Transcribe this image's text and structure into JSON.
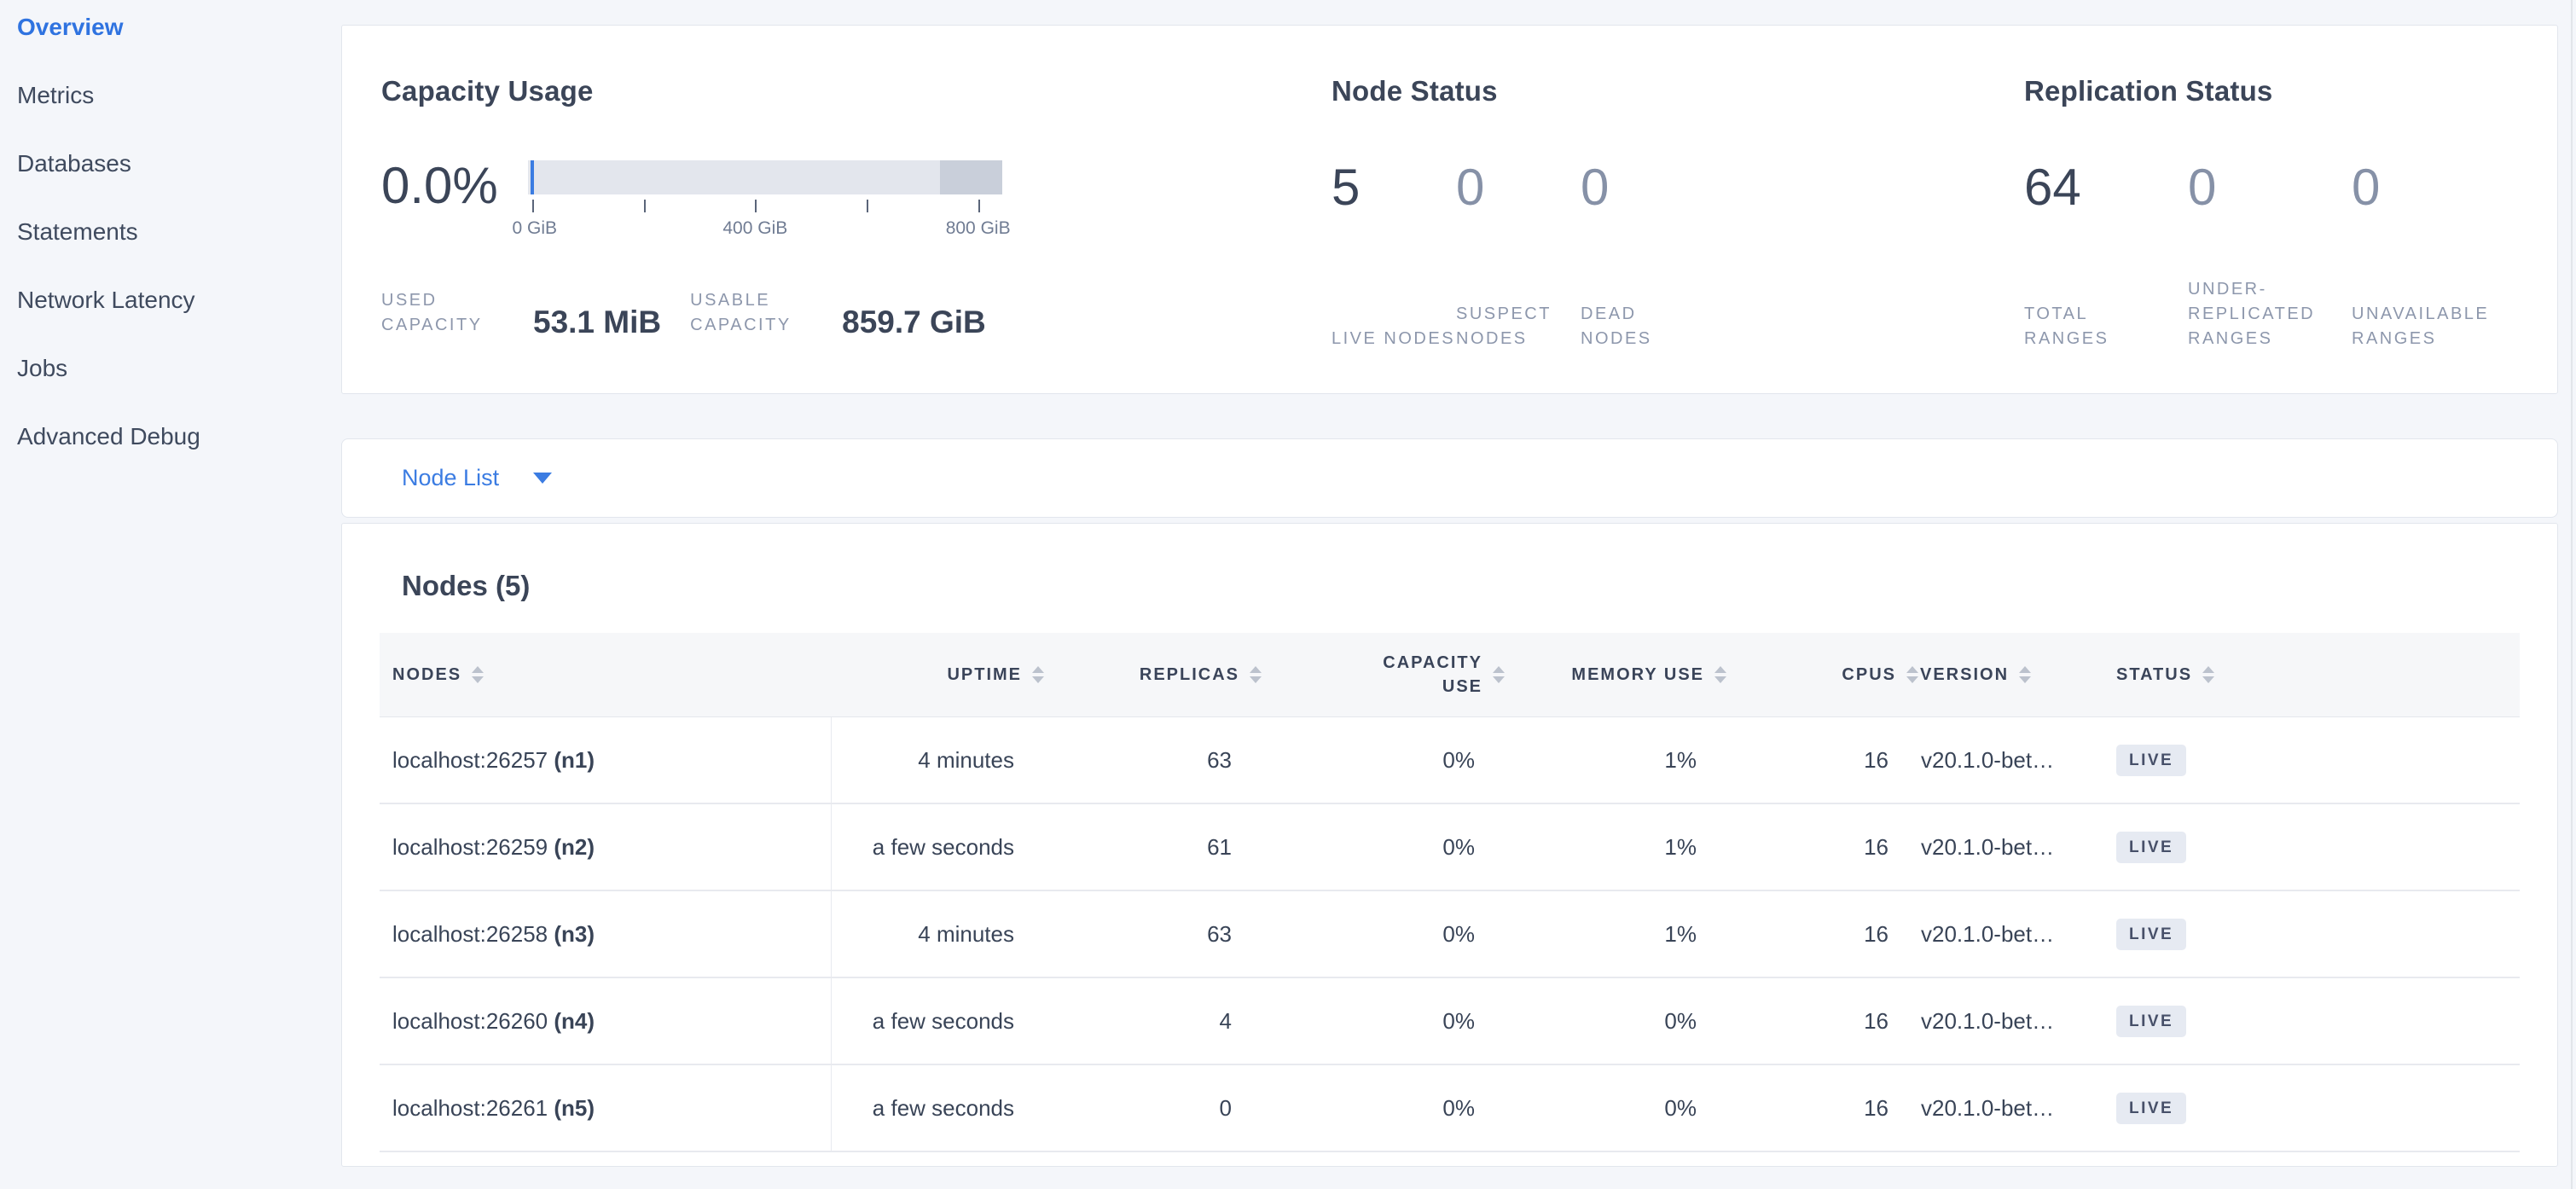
{
  "sidebar": {
    "items": [
      {
        "label": "Overview",
        "active": true
      },
      {
        "label": "Metrics",
        "active": false
      },
      {
        "label": "Databases",
        "active": false
      },
      {
        "label": "Statements",
        "active": false
      },
      {
        "label": "Network Latency",
        "active": false
      },
      {
        "label": "Jobs",
        "active": false
      },
      {
        "label": "Advanced Debug",
        "active": false
      }
    ]
  },
  "summary": {
    "capacity": {
      "title": "Capacity Usage",
      "percent": "0.0%",
      "axis_ticks": [
        "0 GiB",
        "400 GiB",
        "800 GiB"
      ],
      "stats": [
        {
          "label": "USED CAPACITY",
          "value": "53.1 MiB"
        },
        {
          "label": "USABLE CAPACITY",
          "value": "859.7 GiB"
        }
      ]
    },
    "node_status": {
      "title": "Node Status",
      "metrics": [
        {
          "value": "5",
          "label": "LIVE NODES"
        },
        {
          "value": "0",
          "label": "SUSPECT NODES"
        },
        {
          "value": "0",
          "label": "DEAD NODES"
        }
      ]
    },
    "replication": {
      "title": "Replication Status",
      "metrics": [
        {
          "value": "64",
          "label": "TOTAL RANGES"
        },
        {
          "value": "0",
          "label": "UNDER-REPLICATED RANGES"
        },
        {
          "value": "0",
          "label": "UNAVAILABLE RANGES"
        }
      ]
    }
  },
  "view_selector": {
    "selected": "Node List"
  },
  "nodes_table": {
    "title": "Nodes (5)",
    "columns": [
      "NODES",
      "UPTIME",
      "REPLICAS",
      "CAPACITY USE",
      "MEMORY USE",
      "CPUS",
      "VERSION",
      "STATUS"
    ],
    "rows": [
      {
        "address": "localhost:26257",
        "id": "(n1)",
        "uptime": "4 minutes",
        "replicas": "63",
        "capacity_use": "0%",
        "memory_use": "1%",
        "cpus": "16",
        "version": "v20.1.0-bet…",
        "status": "LIVE"
      },
      {
        "address": "localhost:26259",
        "id": "(n2)",
        "uptime": "a few seconds",
        "replicas": "61",
        "capacity_use": "0%",
        "memory_use": "1%",
        "cpus": "16",
        "version": "v20.1.0-bet…",
        "status": "LIVE"
      },
      {
        "address": "localhost:26258",
        "id": "(n3)",
        "uptime": "4 minutes",
        "replicas": "63",
        "capacity_use": "0%",
        "memory_use": "1%",
        "cpus": "16",
        "version": "v20.1.0-bet…",
        "status": "LIVE"
      },
      {
        "address": "localhost:26260",
        "id": "(n4)",
        "uptime": "a few seconds",
        "replicas": "4",
        "capacity_use": "0%",
        "memory_use": "0%",
        "cpus": "16",
        "version": "v20.1.0-bet…",
        "status": "LIVE"
      },
      {
        "address": "localhost:26261",
        "id": "(n5)",
        "uptime": "a few seconds",
        "replicas": "0",
        "capacity_use": "0%",
        "memory_use": "0%",
        "cpus": "16",
        "version": "v20.1.0-bet…",
        "status": "LIVE"
      }
    ]
  },
  "colors": {
    "accent_blue": "#3b7ce2",
    "dark_text": "#3b4558",
    "muted_number": "#8691a7",
    "label_gray": "#8d97ac",
    "bar_light": "#e3e6ed",
    "bar_reserved": "#c9cfda",
    "badge_bg": "#e6eaf2"
  }
}
